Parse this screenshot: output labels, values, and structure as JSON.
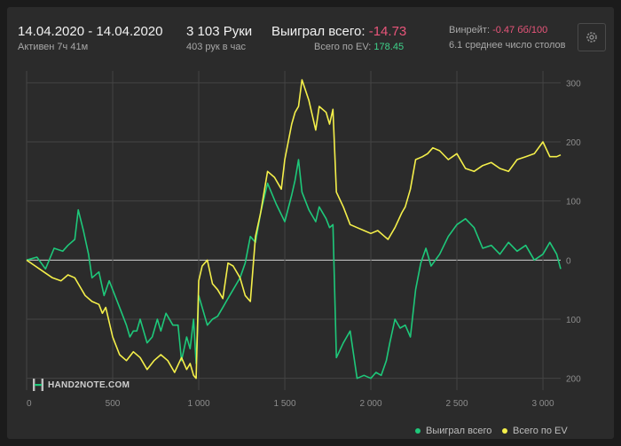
{
  "header": {
    "date_range": "14.04.2020 - 14.04.2020",
    "active_time": "Активен 7ч 41м",
    "hands": "3 103 Руки",
    "hands_per_hour": "403 рук в час",
    "won_label": "Выиграл всего:",
    "won_value": "-14.73",
    "ev_label": "Всего по EV:",
    "ev_value": "178.45",
    "winrate_label": "Винрейт:",
    "winrate_value": "-0.47 бб/100",
    "avg_tables": "6.1 среднее число столов"
  },
  "logo": "HAND2NOTE.COM",
  "colors": {
    "won": "#1ec87a",
    "ev": "#f4ef4a",
    "background": "#2b2b2b"
  },
  "chart_data": {
    "type": "line",
    "xlim": [
      0,
      3103
    ],
    "ylim": [
      -220,
      320
    ],
    "x_ticks": [
      0,
      500,
      1000,
      1500,
      2000,
      2500,
      3000
    ],
    "x_tick_labels": [
      "0",
      "500",
      "1 000",
      "1 500",
      "2 000",
      "2 500",
      "3 000"
    ],
    "y_ticks": [
      300,
      200,
      100,
      0,
      -100,
      -200
    ],
    "y_tick_labels": [
      "300",
      "200",
      "100",
      "0",
      "100",
      "200"
    ],
    "grid": true,
    "legend_position": "bottom-right",
    "series": [
      {
        "name": "Выиграл всего",
        "x": [
          0,
          60,
          110,
          160,
          210,
          240,
          280,
          300,
          330,
          360,
          380,
          420,
          450,
          480,
          500,
          540,
          580,
          600,
          620,
          640,
          660,
          700,
          730,
          760,
          780,
          810,
          850,
          880,
          900,
          930,
          950,
          970,
          985,
          1000,
          1020,
          1050,
          1080,
          1110,
          1140,
          1160,
          1180,
          1200,
          1220,
          1240,
          1270,
          1300,
          1330,
          1360,
          1400,
          1450,
          1500,
          1540,
          1560,
          1580,
          1600,
          1640,
          1680,
          1700,
          1740,
          1760,
          1780,
          1800,
          1840,
          1880,
          1920,
          1960,
          2000,
          2030,
          2060,
          2090,
          2110,
          2140,
          2170,
          2200,
          2230,
          2260,
          2290,
          2320,
          2350,
          2400,
          2450,
          2500,
          2550,
          2600,
          2650,
          2700,
          2750,
          2800,
          2850,
          2900,
          2950,
          3000,
          3040,
          3080,
          3103
        ],
        "y": [
          0,
          5,
          -15,
          20,
          15,
          25,
          35,
          85,
          50,
          10,
          -30,
          -20,
          -60,
          -35,
          -50,
          -80,
          -110,
          -130,
          -120,
          -120,
          -100,
          -140,
          -130,
          -100,
          -120,
          -90,
          -110,
          -110,
          -170,
          -130,
          -150,
          -100,
          -175,
          -60,
          -80,
          -110,
          -100,
          -95,
          -80,
          -70,
          -60,
          -50,
          -40,
          -30,
          -5,
          40,
          30,
          80,
          130,
          95,
          65,
          110,
          135,
          170,
          115,
          85,
          65,
          90,
          70,
          55,
          60,
          -165,
          -140,
          -120,
          -200,
          -195,
          -200,
          -190,
          -195,
          -170,
          -140,
          -100,
          -115,
          -110,
          -130,
          -50,
          -5,
          20,
          -10,
          10,
          40,
          60,
          70,
          55,
          20,
          25,
          10,
          30,
          15,
          25,
          0,
          10,
          30,
          10,
          -15
        ]
      },
      {
        "name": "Всего по EV",
        "x": [
          0,
          50,
          100,
          150,
          200,
          240,
          280,
          300,
          340,
          380,
          420,
          440,
          460,
          500,
          540,
          580,
          620,
          660,
          700,
          740,
          780,
          820,
          860,
          900,
          930,
          950,
          970,
          985,
          1000,
          1020,
          1050,
          1080,
          1110,
          1140,
          1170,
          1200,
          1240,
          1270,
          1300,
          1330,
          1360,
          1400,
          1440,
          1480,
          1500,
          1540,
          1560,
          1580,
          1600,
          1640,
          1680,
          1700,
          1740,
          1760,
          1780,
          1800,
          1840,
          1880,
          1920,
          1960,
          2000,
          2040,
          2080,
          2100,
          2140,
          2180,
          2200,
          2230,
          2260,
          2300,
          2330,
          2360,
          2400,
          2450,
          2500,
          2550,
          2600,
          2650,
          2700,
          2750,
          2800,
          2850,
          2900,
          2950,
          3000,
          3040,
          3080,
          3103
        ],
        "y": [
          0,
          -10,
          -20,
          -30,
          -35,
          -25,
          -30,
          -40,
          -60,
          -70,
          -75,
          -90,
          -80,
          -130,
          -160,
          -170,
          -155,
          -165,
          -185,
          -170,
          -160,
          -170,
          -190,
          -165,
          -185,
          -175,
          -195,
          -200,
          -35,
          -10,
          0,
          -40,
          -50,
          -65,
          -5,
          -10,
          -30,
          -60,
          -70,
          40,
          80,
          150,
          140,
          120,
          170,
          230,
          250,
          260,
          305,
          270,
          220,
          260,
          250,
          230,
          255,
          115,
          90,
          60,
          55,
          50,
          45,
          50,
          40,
          35,
          55,
          80,
          90,
          120,
          170,
          175,
          180,
          190,
          185,
          170,
          180,
          155,
          150,
          160,
          165,
          155,
          150,
          170,
          175,
          180,
          200,
          175,
          175,
          178
        ]
      }
    ]
  }
}
